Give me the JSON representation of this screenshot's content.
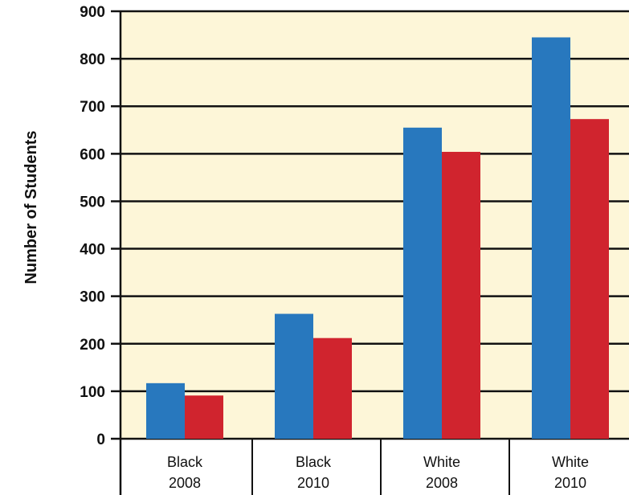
{
  "chart_data": {
    "type": "bar",
    "title": "",
    "ylabel": "Number of Students",
    "xlabel": "",
    "ylim": [
      0,
      900
    ],
    "yticks": [
      0,
      100,
      200,
      300,
      400,
      500,
      600,
      700,
      800,
      900
    ],
    "grid": true,
    "legend": "none",
    "categories": [
      {
        "line1": "Black",
        "line2": "2008"
      },
      {
        "line1": "Black",
        "line2": "2010"
      },
      {
        "line1": "White",
        "line2": "2008"
      },
      {
        "line1": "White",
        "line2": "2010"
      }
    ],
    "series": [
      {
        "color": "#2878be",
        "values": [
          117,
          263,
          655,
          845
        ]
      },
      {
        "color": "#d0242e",
        "values": [
          91,
          212,
          604,
          673
        ]
      }
    ],
    "colors": {
      "plot_background": "#fdf6d8",
      "axis": "#111111"
    }
  }
}
